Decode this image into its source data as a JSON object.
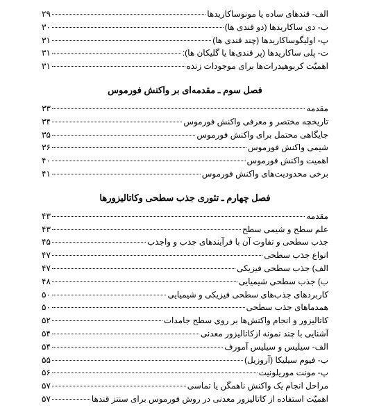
{
  "top_entries": [
    {
      "title": "الف- قندهای ساده یا مونوساکاریدها",
      "page": "۲۹"
    },
    {
      "title": "ب- دی ساکاریدها (دو قندی ها)",
      "page": "۳۰"
    },
    {
      "title": "پ- اولیگوساکاریدها (چند قندی ها)",
      "page": "۳۱"
    },
    {
      "title": "ت- پلی ساکاریدها (پر قندی‌ها یا گلیکان ها):",
      "page": "۳۱"
    },
    {
      "title": "اهمیّت کربوهیدرات‌ها برای موجودات زنده",
      "page": "۳۱"
    }
  ],
  "section3": {
    "heading": "فصل سوم ـ مقدمه‌ای بر واکنش فورموس",
    "entries": [
      {
        "title": "مقدمه",
        "page": "۳۳"
      },
      {
        "title": "تاریخچه مختصر و معرفی واکنش فورموس",
        "page": "۳۴"
      },
      {
        "title": "جایگاهی محتمل برای واکنش فورموس",
        "page": "۳۵"
      },
      {
        "title": "شیمی واکنش فورموس",
        "page": "۳۶"
      },
      {
        "title": "اهمیت واکنش فورموس",
        "page": "۴۰"
      },
      {
        "title": "برخی محدودیت‌های واکنش فورموس",
        "page": "۴۱"
      }
    ]
  },
  "section4": {
    "heading": "فصل چهارم ـ تئوری جذب سطحی وکاتالیزورها",
    "entries": [
      {
        "title": "مقدمه",
        "page": "۴۳"
      },
      {
        "title": "علم سطح و شیمی سطح",
        "page": "۴۳"
      },
      {
        "title": "جذب سطحی و تفاوت آن با فرآیندهای جذب و واجذب",
        "page": "۴۵"
      },
      {
        "title": "انواع جذب سطحی",
        "page": "۴۷"
      },
      {
        "title": "الف) جذب سطحی فیزیکی",
        "page": "۴۷"
      },
      {
        "title": "ب) جذب سطحی شیمیایی",
        "page": "۴۸"
      },
      {
        "title": "کاربردهای جذب‌های سطحی فیزیکی و شیمیایی",
        "page": "۵۰"
      },
      {
        "title": "همدماهای جذب سطحی",
        "page": "۵۰"
      },
      {
        "title": "کاتالیزور و انجام واکنش‌ها بر روی سطح جامدات",
        "page": "۵۲"
      },
      {
        "title": "آشنایی با چند نمونه ازکاتالیزور معدنی",
        "page": "۵۴"
      },
      {
        "title": "الف- سیلیس و سیلیس آمورف",
        "page": "۵۴"
      },
      {
        "title": "ب- فیوم سیلیکا (آروزیل)",
        "page": "۵۵"
      },
      {
        "title": "پ- مونت موریلونیت",
        "page": "۵۶"
      },
      {
        "title": "مراحل انجام یک واکنش ناهمگن یا تماسی",
        "page": "۵۷"
      },
      {
        "title": "اهمیّت استفاده از کاتالیزور معدنی در روش فورموس برای سنتز قندها",
        "page": "۵۷"
      }
    ]
  }
}
